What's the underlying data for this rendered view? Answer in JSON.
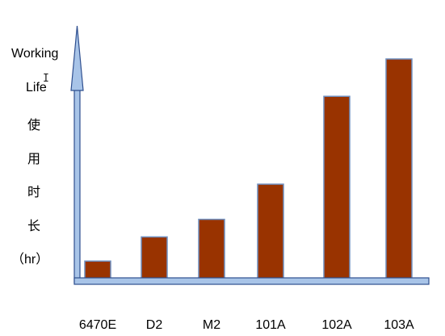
{
  "chart_data": {
    "type": "bar",
    "title": "",
    "xlabel": "",
    "ylabel_lines": [
      "Working",
      "Life",
      "使",
      "用",
      "时",
      "长",
      "（hr）"
    ],
    "categories": [
      "6470E",
      "D2",
      "M2",
      "101A",
      "102A",
      "103A"
    ],
    "values": [
      8,
      19,
      27,
      43,
      83,
      100
    ],
    "ylim": [
      0,
      100
    ],
    "grid": false,
    "legend": "none",
    "colors": {
      "bar_fill": "#993300",
      "bar_stroke": "#6f8fc0",
      "axis_fill": "#a8c4e8",
      "axis_stroke": "#2f4f8f"
    }
  }
}
